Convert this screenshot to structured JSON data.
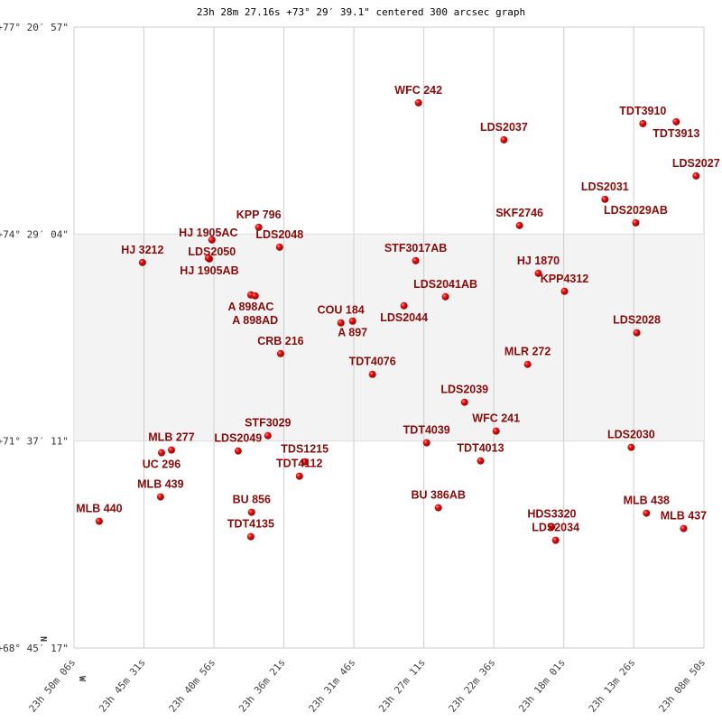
{
  "chart_data": {
    "type": "scatter",
    "title": "23h 28m 27.16s +73° 29′ 39.1\" centered 300 arcsec graph",
    "xlabel": "",
    "ylabel": "",
    "x_unit": "right ascension (seconds of time)",
    "y_unit": "declination (degrees)",
    "xlim": [
      85806,
      83330
    ],
    "ylim": [
      68.7547,
      77.3492
    ],
    "x_reversed": true,
    "grid": true,
    "shaded_band_dec": [
      71.6197,
      74.4844
    ],
    "compass": {
      "north": "N",
      "west": "W"
    },
    "x_ticks": [
      {
        "value": 85806,
        "label": "23h 50m 06s"
      },
      {
        "value": 85531,
        "label": "23h 45m 31s"
      },
      {
        "value": 85256,
        "label": "23h 40m 56s"
      },
      {
        "value": 84981,
        "label": "23h 36m 21s"
      },
      {
        "value": 84706,
        "label": "23h 31m 46s"
      },
      {
        "value": 84431,
        "label": "23h 27m 11s"
      },
      {
        "value": 84156,
        "label": "23h 22m 36s"
      },
      {
        "value": 83881,
        "label": "23h 18m 01s"
      },
      {
        "value": 83606,
        "label": "23h 13m 26s"
      },
      {
        "value": 83330,
        "label": "23h 08m 50s"
      }
    ],
    "y_ticks": [
      {
        "value": 77.3492,
        "label": "+77° 20′ 57\""
      },
      {
        "value": 74.4844,
        "label": "+74° 29′ 04\""
      },
      {
        "value": 71.6197,
        "label": "+71° 37′ 11\""
      },
      {
        "value": 68.7547,
        "label": "+68° 45′ 17\""
      }
    ],
    "colors": {
      "point": "#dd0000",
      "label": "#8a0a0a",
      "band": "#f3f3f3",
      "grid": "#cccccc"
    },
    "points": [
      {
        "name": "WFC 242",
        "ra": 84452,
        "dec": 76.301
      },
      {
        "name": "TDT3910",
        "ra": 83570,
        "dec": 76.013
      },
      {
        "name": "TDT3913",
        "ra": 83439,
        "dec": 76.038
      },
      {
        "name": "LDS2037",
        "ra": 84116,
        "dec": 75.789
      },
      {
        "name": "LDS2027",
        "ra": 83361,
        "dec": 75.289
      },
      {
        "name": "LDS2031",
        "ra": 83719,
        "dec": 74.965
      },
      {
        "name": "LDS2029AB",
        "ra": 83598,
        "dec": 74.64
      },
      {
        "name": "SKF2746",
        "ra": 84055,
        "dec": 74.603
      },
      {
        "name": "KPP 796",
        "ra": 85080,
        "dec": 74.578
      },
      {
        "name": "LDS2050",
        "ra": 85264,
        "dec": 74.403
      },
      {
        "name": "LDS2048",
        "ra": 84998,
        "dec": 74.303
      },
      {
        "name": "HJ 1905AB",
        "ra": 85274,
        "dec": 74.141
      },
      {
        "name": "HJ 1905AC",
        "ra": 85278,
        "dec": 74.153
      },
      {
        "name": "HJ 3212",
        "ra": 85537,
        "dec": 74.091
      },
      {
        "name": "STF3017AB",
        "ra": 84463,
        "dec": 74.116
      },
      {
        "name": "HJ 1870",
        "ra": 83981,
        "dec": 73.941
      },
      {
        "name": "KPP4312",
        "ra": 83878,
        "dec": 73.692
      },
      {
        "name": "LDS2041AB",
        "ra": 84346,
        "dec": 73.617
      },
      {
        "name": "A  898AC",
        "ra": 85111,
        "dec": 73.642
      },
      {
        "name": "A  898AD",
        "ra": 85094,
        "dec": 73.629
      },
      {
        "name": "LDS2044",
        "ra": 84509,
        "dec": 73.492
      },
      {
        "name": "COU 184",
        "ra": 84757,
        "dec": 73.255
      },
      {
        "name": "A  897",
        "ra": 84711,
        "dec": 73.28
      },
      {
        "name": "LDS2028",
        "ra": 83594,
        "dec": 73.118
      },
      {
        "name": "CRB 216",
        "ra": 84994,
        "dec": 72.83
      },
      {
        "name": "MLR 272",
        "ra": 84023,
        "dec": 72.681
      },
      {
        "name": "TDT4076",
        "ra": 84633,
        "dec": 72.543
      },
      {
        "name": "LDS2039",
        "ra": 84271,
        "dec": 72.156
      },
      {
        "name": "WFC 241",
        "ra": 84147,
        "dec": 71.757
      },
      {
        "name": "STF3029",
        "ra": 85044,
        "dec": 71.694
      },
      {
        "name": "TDT4039",
        "ra": 84420,
        "dec": 71.595
      },
      {
        "name": "LDS2030",
        "ra": 83616,
        "dec": 71.532
      },
      {
        "name": "LDS2049",
        "ra": 85161,
        "dec": 71.482
      },
      {
        "name": "MLB 277",
        "ra": 85423,
        "dec": 71.495
      },
      {
        "name": "UC 296",
        "ra": 85462,
        "dec": 71.457
      },
      {
        "name": "TDS1215",
        "ra": 84899,
        "dec": 71.332
      },
      {
        "name": "TDT4013",
        "ra": 84208,
        "dec": 71.345
      },
      {
        "name": "TDT4112",
        "ra": 84920,
        "dec": 71.133
      },
      {
        "name": "MLB 439",
        "ra": 85466,
        "dec": 70.846
      },
      {
        "name": "BU  386AB",
        "ra": 84374,
        "dec": 70.696
      },
      {
        "name": "BU  856",
        "ra": 85108,
        "dec": 70.633
      },
      {
        "name": "MLB 438",
        "ra": 83556,
        "dec": 70.621
      },
      {
        "name": "HDS3320",
        "ra": 83928,
        "dec": 70.434
      },
      {
        "name": "LDS2034",
        "ra": 83913,
        "dec": 70.246
      },
      {
        "name": "MLB 437",
        "ra": 83410,
        "dec": 70.409
      },
      {
        "name": "MLB 440",
        "ra": 85707,
        "dec": 70.509
      },
      {
        "name": "TDT4135",
        "ra": 85111,
        "dec": 70.296
      }
    ]
  }
}
